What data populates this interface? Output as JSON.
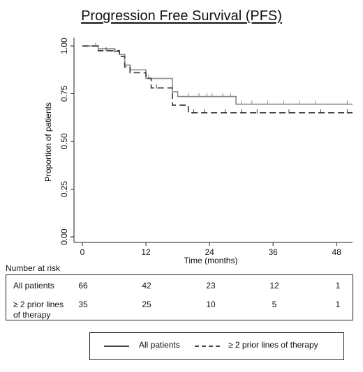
{
  "chart_data": {
    "type": "line",
    "subtype": "kaplan-meier step",
    "title": "Progression Free Survival (PFS)",
    "xlabel": "Time (months)",
    "ylabel": "Proportion of patients",
    "xlim": [
      0,
      51
    ],
    "ylim": [
      0,
      1
    ],
    "x_ticks": [
      0,
      12,
      24,
      36,
      48
    ],
    "y_ticks": [
      0.0,
      0.25,
      0.5,
      0.75,
      1.0
    ],
    "x_tick_labels": [
      "0",
      "12",
      "24",
      "36",
      "48"
    ],
    "y_tick_labels": [
      "0.00",
      "0.25",
      "0.50",
      "0.75",
      "1.00"
    ],
    "grid": false,
    "series": [
      {
        "name": "All patients",
        "color": "#888888",
        "dash": "solid",
        "steps": [
          [
            0,
            1.0
          ],
          [
            3,
            0.985
          ],
          [
            6,
            0.97
          ],
          [
            7,
            0.955
          ],
          [
            8,
            0.9
          ],
          [
            9,
            0.875
          ],
          [
            12,
            0.83
          ],
          [
            17,
            0.76
          ],
          [
            18,
            0.735
          ],
          [
            29,
            0.695
          ],
          [
            51,
            0.695
          ]
        ],
        "censored": [
          [
            2.5,
            1.0
          ],
          [
            6.2,
            0.97
          ],
          [
            12.5,
            0.83
          ],
          [
            20,
            0.735
          ],
          [
            22,
            0.735
          ],
          [
            23.5,
            0.735
          ],
          [
            24.5,
            0.735
          ],
          [
            26.5,
            0.735
          ],
          [
            28,
            0.735
          ],
          [
            30,
            0.695
          ],
          [
            32,
            0.695
          ],
          [
            35,
            0.695
          ],
          [
            38,
            0.695
          ],
          [
            41,
            0.695
          ],
          [
            44,
            0.695
          ],
          [
            50,
            0.695
          ]
        ]
      },
      {
        "name": "≥ 2 prior lines of therapy",
        "color": "#444444",
        "dash": "dashed",
        "steps": [
          [
            0,
            1.0
          ],
          [
            3,
            0.975
          ],
          [
            7,
            0.945
          ],
          [
            8,
            0.89
          ],
          [
            9,
            0.86
          ],
          [
            12,
            0.83
          ],
          [
            13,
            0.78
          ],
          [
            17,
            0.69
          ],
          [
            20,
            0.65
          ],
          [
            51,
            0.65
          ]
        ],
        "censored": [
          [
            4.5,
            0.975
          ],
          [
            14,
            0.78
          ],
          [
            21,
            0.65
          ],
          [
            23,
            0.65
          ],
          [
            27,
            0.65
          ],
          [
            30,
            0.65
          ],
          [
            33,
            0.65
          ],
          [
            39,
            0.65
          ],
          [
            45,
            0.65
          ],
          [
            50,
            0.65
          ]
        ]
      }
    ]
  },
  "risk_table": {
    "caption": "Number at risk",
    "time_points": [
      0,
      12,
      24,
      36,
      48
    ],
    "rows": [
      {
        "label": "All patients",
        "values": [
          "66",
          "42",
          "23",
          "12",
          "1"
        ]
      },
      {
        "label_line1": "≥ 2 prior lines",
        "label_line2": "of therapy",
        "values": [
          "35",
          "25",
          "10",
          "5",
          "1"
        ]
      }
    ]
  },
  "legend": {
    "items": [
      {
        "label": "All patients",
        "style": "solid"
      },
      {
        "label": "≥ 2 prior lines of therapy",
        "style": "dashed"
      }
    ]
  }
}
